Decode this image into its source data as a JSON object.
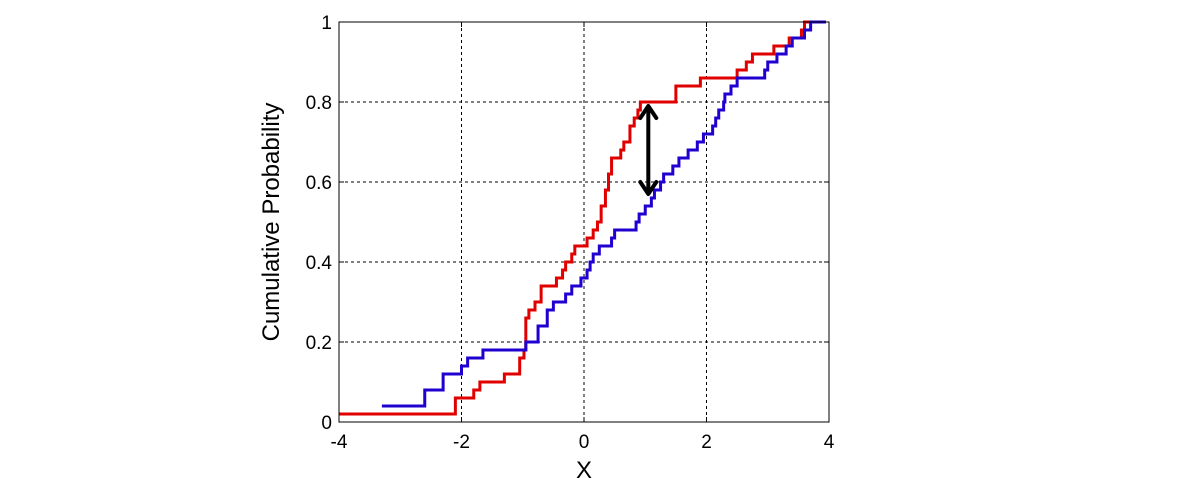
{
  "chart_data": {
    "type": "line",
    "xlabel": "X",
    "ylabel": "Cumulative Probability",
    "xlim": [
      -4,
      4
    ],
    "ylim": [
      0,
      1
    ],
    "x_ticks": [
      -4,
      -2,
      0,
      2,
      4
    ],
    "x_tick_labels": [
      "-4",
      "-2",
      "0",
      "2",
      "4"
    ],
    "y_ticks": [
      0,
      0.2,
      0.4,
      0.6,
      0.8,
      1
    ],
    "y_tick_labels": [
      "0",
      "0.2",
      "0.4",
      "0.6",
      "0.8",
      "1"
    ],
    "grid": true,
    "series": [
      {
        "color": "#e00000",
        "step": true,
        "points": [
          [
            -4.0,
            0.02
          ],
          [
            -2.2,
            0.02
          ],
          [
            -2.1,
            0.06
          ],
          [
            -1.8,
            0.08
          ],
          [
            -1.7,
            0.1
          ],
          [
            -1.3,
            0.12
          ],
          [
            -1.05,
            0.16
          ],
          [
            -0.98,
            0.18
          ],
          [
            -0.95,
            0.26
          ],
          [
            -0.9,
            0.28
          ],
          [
            -0.8,
            0.3
          ],
          [
            -0.7,
            0.34
          ],
          [
            -0.45,
            0.36
          ],
          [
            -0.35,
            0.38
          ],
          [
            -0.3,
            0.4
          ],
          [
            -0.2,
            0.42
          ],
          [
            -0.15,
            0.44
          ],
          [
            0.05,
            0.46
          ],
          [
            0.15,
            0.48
          ],
          [
            0.22,
            0.5
          ],
          [
            0.28,
            0.54
          ],
          [
            0.35,
            0.58
          ],
          [
            0.4,
            0.62
          ],
          [
            0.45,
            0.66
          ],
          [
            0.6,
            0.68
          ],
          [
            0.65,
            0.7
          ],
          [
            0.75,
            0.74
          ],
          [
            0.82,
            0.76
          ],
          [
            0.88,
            0.78
          ],
          [
            0.92,
            0.8
          ],
          [
            1.5,
            0.84
          ],
          [
            1.9,
            0.86
          ],
          [
            2.5,
            0.88
          ],
          [
            2.65,
            0.9
          ],
          [
            2.75,
            0.92
          ],
          [
            3.1,
            0.94
          ],
          [
            3.35,
            0.96
          ],
          [
            3.55,
            0.98
          ],
          [
            3.6,
            1.0
          ]
        ]
      },
      {
        "color": "#1f00d0",
        "step": true,
        "points": [
          [
            -3.3,
            0.04
          ],
          [
            -2.6,
            0.08
          ],
          [
            -2.3,
            0.12
          ],
          [
            -2.0,
            0.14
          ],
          [
            -1.9,
            0.16
          ],
          [
            -1.65,
            0.18
          ],
          [
            -0.95,
            0.2
          ],
          [
            -0.75,
            0.24
          ],
          [
            -0.6,
            0.28
          ],
          [
            -0.5,
            0.3
          ],
          [
            -0.3,
            0.32
          ],
          [
            -0.2,
            0.34
          ],
          [
            -0.05,
            0.36
          ],
          [
            0.05,
            0.38
          ],
          [
            0.1,
            0.4
          ],
          [
            0.15,
            0.42
          ],
          [
            0.25,
            0.44
          ],
          [
            0.45,
            0.46
          ],
          [
            0.5,
            0.48
          ],
          [
            0.85,
            0.5
          ],
          [
            0.9,
            0.52
          ],
          [
            1.0,
            0.54
          ],
          [
            1.1,
            0.56
          ],
          [
            1.15,
            0.58
          ],
          [
            1.25,
            0.6
          ],
          [
            1.3,
            0.62
          ],
          [
            1.45,
            0.64
          ],
          [
            1.55,
            0.66
          ],
          [
            1.7,
            0.68
          ],
          [
            1.85,
            0.7
          ],
          [
            1.95,
            0.72
          ],
          [
            2.1,
            0.74
          ],
          [
            2.15,
            0.76
          ],
          [
            2.2,
            0.78
          ],
          [
            2.28,
            0.8
          ],
          [
            2.3,
            0.82
          ],
          [
            2.4,
            0.84
          ],
          [
            2.5,
            0.86
          ],
          [
            2.95,
            0.88
          ],
          [
            3.0,
            0.9
          ],
          [
            3.15,
            0.92
          ],
          [
            3.3,
            0.94
          ],
          [
            3.4,
            0.96
          ],
          [
            3.6,
            0.98
          ],
          [
            3.7,
            1.0
          ]
        ]
      }
    ],
    "annotation": {
      "type": "double-arrow",
      "color": "#000000",
      "x": 1.05,
      "y_top": 0.8,
      "y_bottom": 0.56
    }
  }
}
